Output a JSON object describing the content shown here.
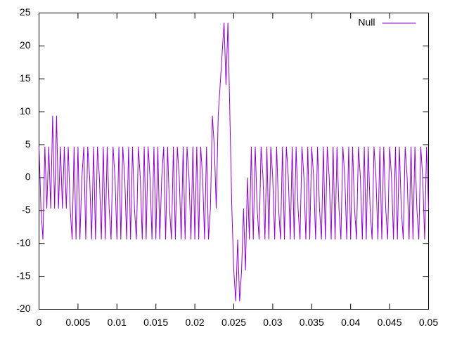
{
  "chart_data": {
    "type": "line",
    "x": [
      0,
      0.00025,
      0.0005,
      0.00075,
      0.001,
      0.00125,
      0.0015,
      0.00175,
      0.002,
      0.00225,
      0.0025,
      0.00275,
      0.003,
      0.00325,
      0.0035,
      0.00375,
      0.004,
      0.00425,
      0.0045,
      0.00475,
      0.005,
      0.00525,
      0.0055,
      0.00575,
      0.006,
      0.00625,
      0.0065,
      0.00675,
      0.007,
      0.00725,
      0.0075,
      0.00775,
      0.008,
      0.00825,
      0.0085,
      0.00875,
      0.009,
      0.00925,
      0.0095,
      0.00975,
      0.01,
      0.01025,
      0.0105,
      0.01075,
      0.011,
      0.01125,
      0.0115,
      0.01175,
      0.012,
      0.01225,
      0.0125,
      0.01275,
      0.013,
      0.01325,
      0.0135,
      0.01375,
      0.014,
      0.01425,
      0.0145,
      0.01475,
      0.015,
      0.01525,
      0.0155,
      0.01575,
      0.016,
      0.01625,
      0.0165,
      0.01675,
      0.017,
      0.01725,
      0.0175,
      0.01775,
      0.018,
      0.01825,
      0.0185,
      0.01875,
      0.019,
      0.01925,
      0.0195,
      0.01975,
      0.02,
      0.02025,
      0.0205,
      0.02075,
      0.021,
      0.02125,
      0.0215,
      0.02175,
      0.022,
      0.02225,
      0.0225,
      0.02275,
      0.023,
      0.02325,
      0.0235,
      0.02375,
      0.024,
      0.02425,
      0.0245,
      0.02475,
      0.025,
      0.02525,
      0.0255,
      0.02575,
      0.026,
      0.02625,
      0.0265,
      0.02675,
      0.027,
      0.02725,
      0.0275,
      0.02775,
      0.028,
      0.02825,
      0.0285,
      0.02875,
      0.029,
      0.02925,
      0.0295,
      0.02975,
      0.03,
      0.03025,
      0.0305,
      0.03075,
      0.031,
      0.03125,
      0.0315,
      0.03175,
      0.032,
      0.03225,
      0.0325,
      0.03275,
      0.033,
      0.03325,
      0.0335,
      0.03375,
      0.034,
      0.03425,
      0.0345,
      0.03475,
      0.035,
      0.03525,
      0.0355,
      0.03575,
      0.036,
      0.03625,
      0.0365,
      0.03675,
      0.037,
      0.03725,
      0.0375,
      0.03775,
      0.038,
      0.03825,
      0.0385,
      0.03875,
      0.039,
      0.03925,
      0.0395,
      0.03975,
      0.04,
      0.04025,
      0.0405,
      0.04075,
      0.041,
      0.04125,
      0.0415,
      0.04175,
      0.042,
      0.04225,
      0.0425,
      0.04275,
      0.043,
      0.04325,
      0.0435,
      0.04375,
      0.044,
      0.04425,
      0.0445,
      0.04475,
      0.045,
      0.04525,
      0.0455,
      0.04575,
      0.046,
      0.04625,
      0.0465,
      0.04675,
      0.047,
      0.04725,
      0.0475,
      0.04775,
      0.048,
      0.04825,
      0.0485,
      0.04875,
      0.049,
      0.04925,
      0.0495,
      0.04975,
      0.05
    ],
    "series": [
      {
        "name": "Null",
        "color": "#9400d3",
        "values": [
          4.7,
          -4.7,
          -9.4,
          4.7,
          -4.7,
          4.7,
          -4.7,
          9.4,
          -4.7,
          9.4,
          -4.7,
          4.7,
          -4.7,
          4.7,
          -4.7,
          4.7,
          -4.7,
          -9.4,
          4.7,
          -9.4,
          4.7,
          -9.4,
          0,
          4.7,
          -9.4,
          4.7,
          0,
          -9.4,
          4.7,
          -9.4,
          4.7,
          0,
          -9.4,
          4.7,
          -9.4,
          4.7,
          -4.7,
          -9.4,
          4.7,
          0,
          -9.4,
          4.7,
          -9.4,
          4.7,
          0,
          -9.4,
          4.7,
          -9.4,
          4.7,
          -4.7,
          -9.4,
          4.7,
          0,
          -9.4,
          4.7,
          -9.4,
          4.7,
          0,
          -9.4,
          4.7,
          -9.4,
          4.7,
          -9.4,
          0,
          4.7,
          -9.4,
          4.7,
          -4.7,
          -9.4,
          4.7,
          -9.4,
          4.7,
          0,
          -9.4,
          4.7,
          -9.4,
          4.7,
          0,
          -9.4,
          4.7,
          -9.4,
          4.7,
          -9.4,
          4.7,
          0,
          -9.4,
          4.7,
          -9.4,
          -4.7,
          9.4,
          4.7,
          -4.7,
          9.4,
          14.1,
          18.8,
          23.5,
          14.1,
          23.5,
          9.4,
          -4.7,
          -14.1,
          -18.8,
          -9.4,
          -18.8,
          -14.1,
          -4.7,
          -14.1,
          0,
          -9.4,
          4.7,
          -9.4,
          4.7,
          -4.7,
          -9.4,
          4.7,
          0,
          -9.4,
          4.7,
          -9.4,
          4.7,
          0,
          -9.4,
          4.7,
          -4.7,
          -9.4,
          4.7,
          -9.4,
          4.7,
          0,
          -9.4,
          4.7,
          -9.4,
          4.7,
          -4.7,
          -9.4,
          4.7,
          0,
          -9.4,
          4.7,
          -9.4,
          4.7,
          0,
          -9.4,
          4.7,
          -4.7,
          -9.4,
          4.7,
          -9.4,
          4.7,
          0,
          -9.4,
          4.7,
          -9.4,
          4.7,
          -4.7,
          -9.4,
          4.7,
          0,
          -9.4,
          4.7,
          -9.4,
          4.7,
          -4.7,
          -9.4,
          4.7,
          0,
          -9.4,
          4.7,
          -9.4,
          4.7,
          -4.7,
          -9.4,
          4.7,
          0,
          -9.4,
          4.7,
          -9.4,
          4.7,
          -4.7,
          -9.4,
          4.7,
          0,
          -9.4,
          4.7,
          -9.4,
          4.7,
          -4.7,
          -9.4,
          4.7,
          0,
          -9.4,
          4.7,
          -9.4,
          4.7,
          -4.7,
          -9.4,
          4.7,
          0,
          -9.4,
          4.7,
          -4.7
        ]
      }
    ],
    "xlim": [
      0,
      0.05
    ],
    "ylim": [
      -20,
      25
    ],
    "xticks": [
      0,
      0.005,
      0.01,
      0.015,
      0.02,
      0.025,
      0.03,
      0.035,
      0.04,
      0.045,
      0.05
    ],
    "yticks": [
      -20,
      -15,
      -10,
      -5,
      0,
      5,
      10,
      15,
      20,
      25
    ],
    "legend": "top-right"
  }
}
